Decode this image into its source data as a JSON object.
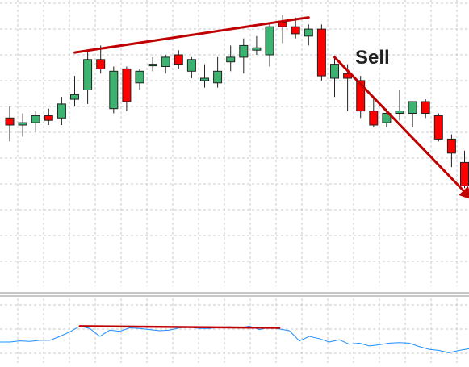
{
  "chart_data": [
    {
      "type": "candlestick",
      "annotation": "Sell",
      "grid": true,
      "colors": {
        "up": "#3cb371",
        "down": "#ff0000",
        "wick": "#222222",
        "grid": "#c8c8c8",
        "annotation": "#c00000",
        "text": "#222222"
      },
      "ylim": [
        0,
        100
      ],
      "candles": [
        {
          "open": 53,
          "high": 58,
          "low": 43,
          "close": 50
        },
        {
          "open": 50,
          "high": 55,
          "low": 45,
          "close": 51
        },
        {
          "open": 51,
          "high": 56,
          "low": 47,
          "close": 54
        },
        {
          "open": 54,
          "high": 57,
          "low": 50,
          "close": 52
        },
        {
          "open": 53,
          "high": 62,
          "low": 50,
          "close": 59
        },
        {
          "open": 61,
          "high": 71,
          "low": 58,
          "close": 63
        },
        {
          "open": 65,
          "high": 82,
          "low": 59,
          "close": 78
        },
        {
          "open": 78,
          "high": 84,
          "low": 72,
          "close": 74
        },
        {
          "open": 57,
          "high": 75,
          "low": 55,
          "close": 73
        },
        {
          "open": 74,
          "high": 75,
          "low": 56,
          "close": 60
        },
        {
          "open": 68,
          "high": 74,
          "low": 65,
          "close": 73
        },
        {
          "open": 76,
          "high": 79,
          "low": 73,
          "close": 76
        },
        {
          "open": 75,
          "high": 80,
          "low": 72,
          "close": 79
        },
        {
          "open": 80,
          "high": 82,
          "low": 74,
          "close": 76
        },
        {
          "open": 73,
          "high": 79,
          "low": 70,
          "close": 78
        },
        {
          "open": 69,
          "high": 76,
          "low": 66,
          "close": 70
        },
        {
          "open": 68,
          "high": 79,
          "low": 66,
          "close": 73
        },
        {
          "open": 77,
          "high": 84,
          "low": 73,
          "close": 79
        },
        {
          "open": 79,
          "high": 87,
          "low": 72,
          "close": 84
        },
        {
          "open": 82,
          "high": 88,
          "low": 80,
          "close": 83
        },
        {
          "open": 80,
          "high": 94,
          "low": 75,
          "close": 92
        },
        {
          "open": 94,
          "high": 97,
          "low": 85,
          "close": 92
        },
        {
          "open": 92,
          "high": 96,
          "low": 87,
          "close": 89
        },
        {
          "open": 88,
          "high": 93,
          "low": 84,
          "close": 91
        },
        {
          "open": 91,
          "high": 93,
          "low": 69,
          "close": 71
        },
        {
          "open": 70,
          "high": 79,
          "low": 62,
          "close": 76
        },
        {
          "open": 72,
          "high": 76,
          "low": 56,
          "close": 70
        },
        {
          "open": 69,
          "high": 71,
          "low": 53,
          "close": 56
        },
        {
          "open": 56,
          "high": 62,
          "low": 49,
          "close": 50
        },
        {
          "open": 51,
          "high": 57,
          "low": 49,
          "close": 55
        },
        {
          "open": 55,
          "high": 65,
          "low": 52,
          "close": 56
        },
        {
          "open": 55,
          "high": 60,
          "low": 49,
          "close": 60
        },
        {
          "open": 60,
          "high": 61,
          "low": 53,
          "close": 55
        },
        {
          "open": 54,
          "high": 55,
          "low": 43,
          "close": 44
        },
        {
          "open": 44,
          "high": 46,
          "low": 32,
          "close": 38
        },
        {
          "open": 34,
          "high": 39,
          "low": 23,
          "close": 24
        },
        {
          "open": 24,
          "high": 34,
          "low": 23,
          "close": 29
        }
      ],
      "trendline": {
        "from": [
          5,
          81
        ],
        "to": [
          23,
          96
        ]
      },
      "arrow": {
        "from": [
          25,
          79
        ],
        "to": [
          35.6,
          18
        ]
      }
    },
    {
      "type": "line",
      "ylim": [
        0,
        100
      ],
      "values": [
        30,
        30,
        32,
        31,
        33,
        33,
        40,
        48,
        58,
        54,
        40,
        51,
        49,
        55,
        54,
        52,
        50,
        51,
        55,
        56,
        54,
        54,
        56,
        57,
        55,
        58,
        52,
        56,
        53,
        50,
        32,
        40,
        36,
        30,
        34,
        26,
        28,
        23,
        25,
        28,
        29,
        28,
        22,
        17,
        15,
        11,
        15,
        18
      ],
      "trendline": {
        "from": [
          8,
          58
        ],
        "to": [
          28,
          55
        ]
      }
    }
  ]
}
